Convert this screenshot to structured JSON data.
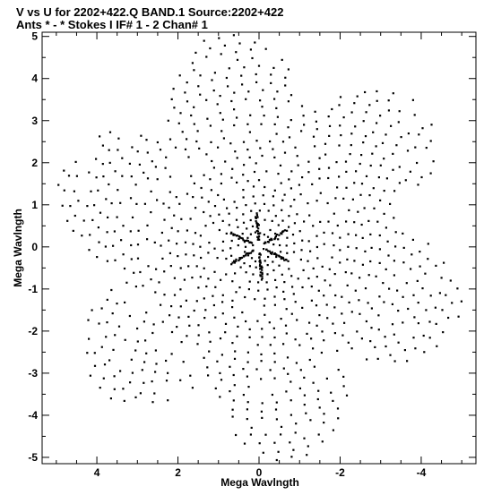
{
  "header": {
    "line1": "V vs U for 2202+422.Q BAND.1   Source:2202+422",
    "line2": "Ants * - *    Stokes I  IF# 1 - 2  Chan# 1"
  },
  "chart_data": {
    "type": "scatter",
    "title": "V vs U for 2202+422.Q BAND.1   Source:2202+422",
    "subtitle": "Ants * - *    Stokes I  IF# 1 - 2  Chan# 1",
    "xlabel": "Mega Wavlngth",
    "ylabel": "Mega Wavlngth",
    "xlim": [
      5.35,
      -5.35
    ],
    "ylim": [
      -5.15,
      5.1
    ],
    "x_reversed": true,
    "grid": false,
    "xticks": [
      {
        "value": 4,
        "label": "4"
      },
      {
        "value": 2,
        "label": "2"
      },
      {
        "value": 0,
        "label": "0"
      },
      {
        "value": -2,
        "label": "-2"
      },
      {
        "value": -4,
        "label": "-4"
      }
    ],
    "yticks": [
      {
        "value": 5,
        "label": "5"
      },
      {
        "value": 4,
        "label": "4"
      },
      {
        "value": 3,
        "label": "3"
      },
      {
        "value": 2,
        "label": "2"
      },
      {
        "value": 1,
        "label": "1"
      },
      {
        "value": 0,
        "label": "0"
      },
      {
        "value": -1,
        "label": "-1"
      },
      {
        "value": -2,
        "label": "-2"
      },
      {
        "value": -3,
        "label": "-3"
      },
      {
        "value": -4,
        "label": "-4"
      },
      {
        "value": -5,
        "label": "-5"
      }
    ],
    "point_color": "#000000",
    "distribution": {
      "symmetry": "point-symmetric (u,v) and (-u,-v)",
      "lobes": 6,
      "max_radius": 5.0,
      "ring_count": 26
    }
  }
}
